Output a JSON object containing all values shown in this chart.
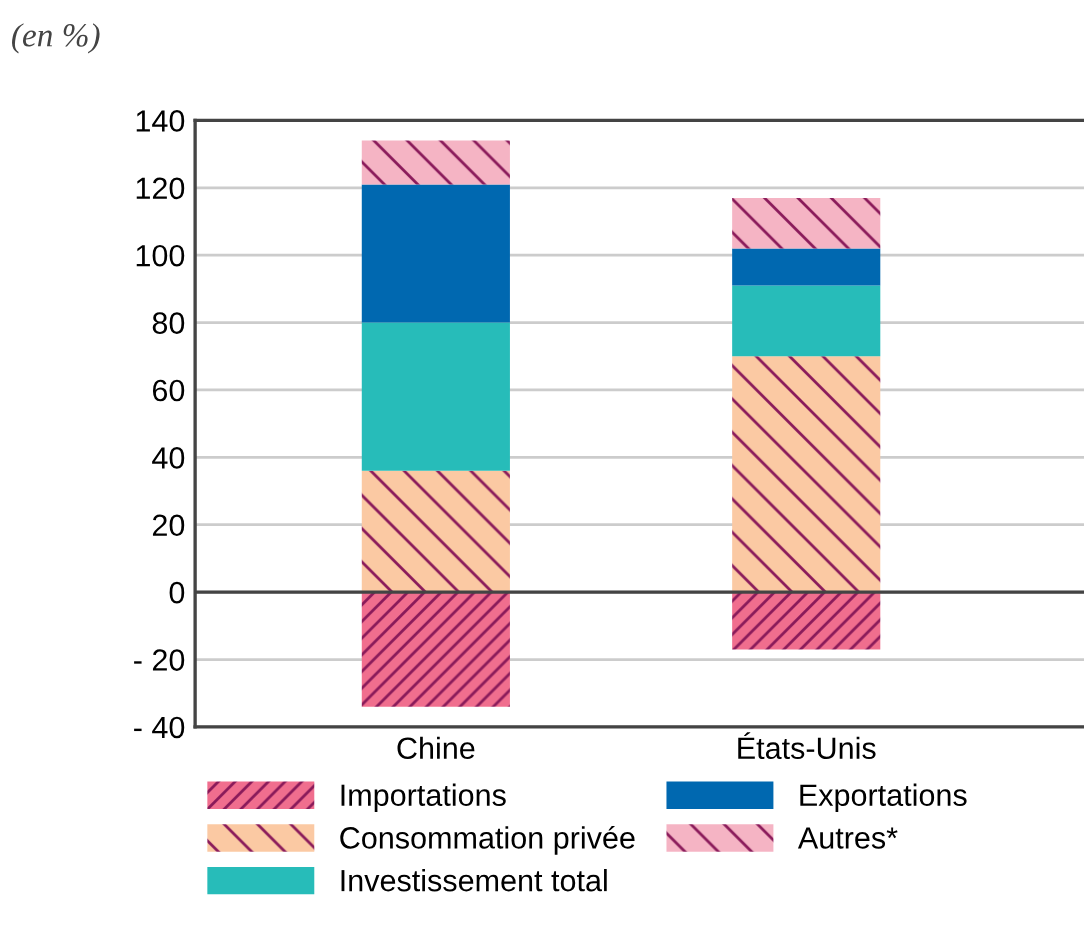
{
  "chart_data": {
    "type": "bar",
    "stacked": true,
    "categories": [
      "Chine",
      "États-Unis"
    ],
    "series": [
      {
        "name": "Importations",
        "color": "#f06e8e",
        "values": [
          -34,
          -17
        ]
      },
      {
        "name": "Consommation privée",
        "color": "#fbc9a3",
        "values": [
          36,
          70
        ]
      },
      {
        "name": "Investissement total",
        "color": "#27bcb9",
        "values": [
          44,
          21
        ]
      },
      {
        "name": "Exportations",
        "color": "#0068b0",
        "values": [
          41,
          11
        ]
      },
      {
        "name": "Autres*",
        "color": "#f5b4c4",
        "values": [
          13,
          15
        ]
      }
    ],
    "ylim": [
      -40,
      140
    ],
    "yticks": [
      {
        "value": -40,
        "label": "- 40"
      },
      {
        "value": -20,
        "label": "- 20"
      },
      0,
      20,
      40,
      60,
      80,
      100,
      120,
      140
    ],
    "grid": "y",
    "legend": "bottom",
    "annotations": [
      "(en %)"
    ]
  }
}
